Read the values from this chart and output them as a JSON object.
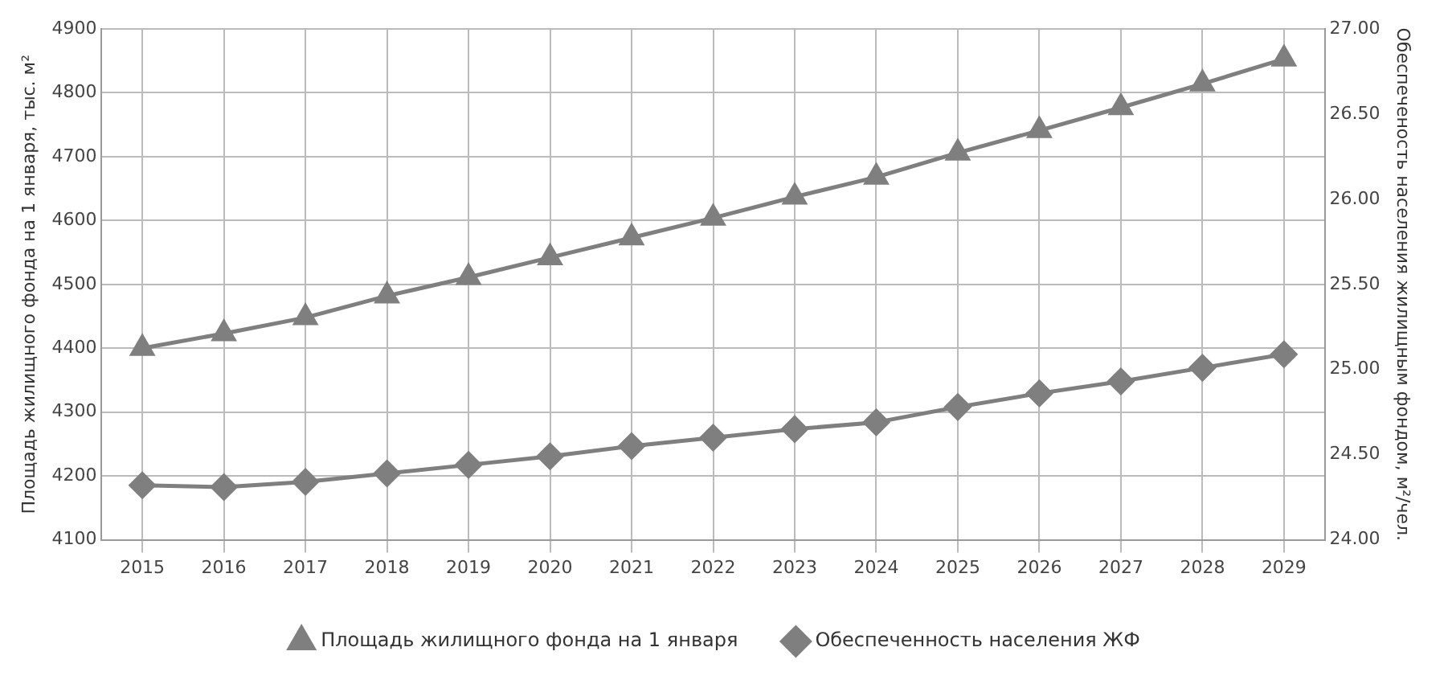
{
  "chart_data": {
    "type": "line",
    "ylabel": "Площадь жилищного фонда на 1 января, тыс. м²",
    "y2label": "Обеспеченость населения жилищным фондом, м²/чел.",
    "categories": [
      "2015",
      "2016",
      "2017",
      "2018",
      "2019",
      "2020",
      "2021",
      "2022",
      "2023",
      "2024",
      "2025",
      "2026",
      "2027",
      "2028",
      "2029"
    ],
    "series": [
      {
        "name": "Площадь жилищного фонда на 1 января",
        "color": "#7f7f7f",
        "marker": "triangle",
        "values": [
          4400,
          4423,
          4448,
          4482,
          4511,
          4542,
          4573,
          4604,
          4637,
          4668,
          4706,
          4741,
          4777,
          4814,
          4853
        ]
      },
      {
        "name": "Обеспеченность населения ЖФ",
        "color": "#7f7f7f",
        "marker": "diamond",
        "axis": "y2",
        "values": [
          24.32,
          24.31,
          24.34,
          24.39,
          24.44,
          24.49,
          24.55,
          24.6,
          24.65,
          24.69,
          24.78,
          24.86,
          24.93,
          25.01,
          25.09
        ]
      }
    ],
    "ylim": [
      4100,
      4900
    ],
    "yticks": [
      4100,
      4200,
      4300,
      4400,
      4500,
      4600,
      4700,
      4800,
      4900
    ],
    "y2lim": [
      24,
      27
    ],
    "y2ticks": [
      {
        "value": 24,
        "label": "24.00"
      },
      {
        "value": 24.5,
        "label": "24.50"
      },
      {
        "value": 25,
        "label": "25.00"
      },
      {
        "value": 25.5,
        "label": "25.50"
      },
      {
        "value": 26,
        "label": "26.00"
      },
      {
        "value": 26.5,
        "label": "26.50"
      },
      {
        "value": 27,
        "label": "27.00"
      }
    ],
    "grid": true,
    "legend": "bottom"
  }
}
